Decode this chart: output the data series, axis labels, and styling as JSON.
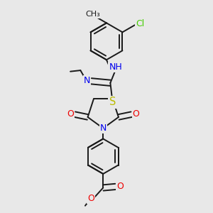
{
  "bg_color": "#e8e8e8",
  "bond_color": "#1a1a1a",
  "bond_width": 1.4,
  "atom_colors": {
    "N": "#0000ee",
    "O": "#ee0000",
    "S": "#bbbb00",
    "Cl": "#44cc00",
    "C": "#1a1a1a",
    "H": "#1a1a1a"
  },
  "font_size": 8.5,
  "fig_width": 3.0,
  "fig_height": 3.0,
  "dpi": 100
}
